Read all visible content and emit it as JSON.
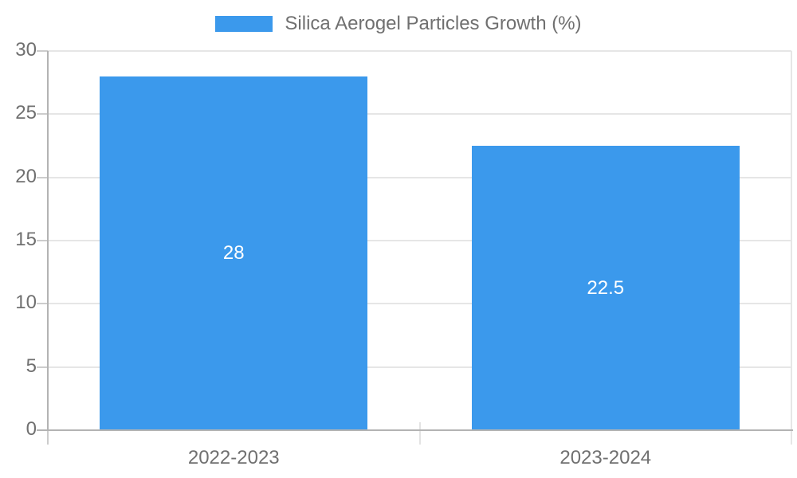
{
  "chart_data": {
    "type": "bar",
    "title": "Silica Aerogel Particles Growth (%)",
    "categories": [
      "2022-2023",
      "2023-2024"
    ],
    "values": [
      28,
      22.5
    ],
    "value_labels": [
      "28",
      "22.5"
    ],
    "xlabel": "",
    "ylabel": "",
    "ylim": [
      0,
      30
    ],
    "yticks": [
      0,
      5,
      10,
      15,
      20,
      25,
      30
    ],
    "ytick_labels": [
      "0",
      "5",
      "10",
      "15",
      "20",
      "25",
      "30"
    ],
    "grid": true,
    "legend": {
      "position": "top-center",
      "label": "Silica Aerogel Particles Growth (%)"
    },
    "colors": {
      "bar": "#3b99ec",
      "value_label": "#ffffff",
      "axis_text": "#707070",
      "gridline": "#e6e6e6",
      "axis_line": "#b3b3b3",
      "tick": "#cccccc",
      "divider": "#e3e3e3",
      "background": "#ffffff"
    }
  }
}
